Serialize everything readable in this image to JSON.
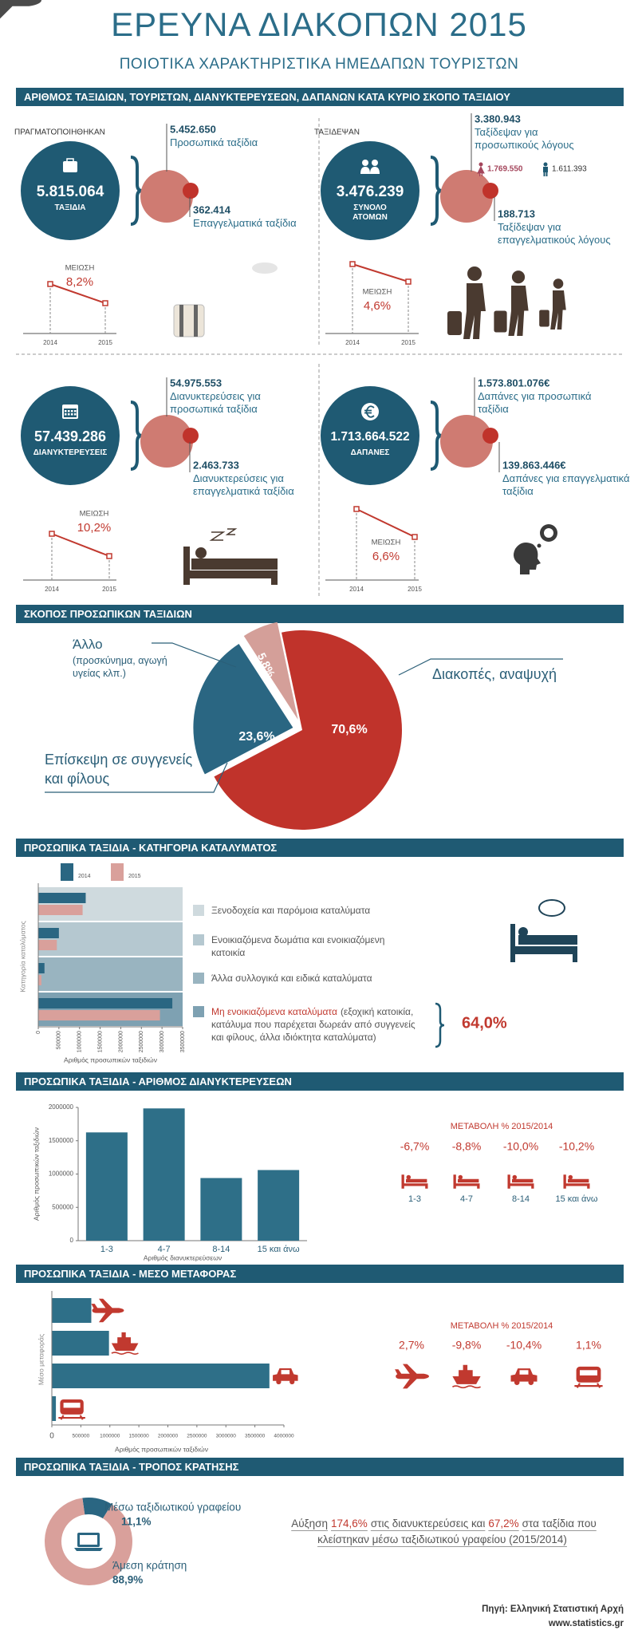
{
  "header": {
    "title": "ΕΡΕΥΝΑ ΔΙΑΚΟΠΩΝ 2015",
    "subtitle": "ΠΟΙΟΤΙΚΑ ΧΑΡΑΚΤΗΡΙΣΤΙΚΑ ΗΜΕΔΑΠΩΝ ΤΟΥΡΙΣΤΩΝ"
  },
  "summary": {
    "title": "ΑΡΙΘΜΟΣ ΤΑΞΙΔΙΩΝ, ΤΟΥΡΙΣΤΩΝ, ΔΙΑΝΥΚΤΕΡΕΥΣΕΩΝ, ΔΑΠΑΝΩΝ ΚΑΤΑ ΚΥΡΙΟ ΣΚΟΠΟ ΤΑΞΙΔΙΟΥ",
    "change_title": "ΜΕΙΩΣΗ",
    "years": [
      "2014",
      "2015"
    ],
    "blocks": [
      {
        "heading": "ΠΡΑΓΜΑΤΟΠΟΙΗΘΗΚΑΝ",
        "total": "5.815.064",
        "total_label": "ΤΑΞΙΔΙΑ",
        "personal": "5.452.650",
        "personal_label": "Προσωπικά ταξίδια",
        "business": "362.414",
        "business_label": "Επαγγελματικά ταξίδια",
        "change": "8,2%"
      },
      {
        "heading": "ΤΑΞΙΔΕΨΑΝ",
        "total": "3.476.239",
        "total_label": "ΣΥΝΟΛΟ ΑΤΟΜΩΝ",
        "personal": "3.380.943",
        "personal_label": "Ταξίδεψαν για προσωπικούς λόγους",
        "women": "1.769.550",
        "men": "1.611.393",
        "business": "188.713",
        "business_label": "Ταξίδεψαν για επαγγελματικούς λόγους",
        "change": "4,6%"
      },
      {
        "total": "57.439.286",
        "total_label": "ΔΙΑΝΥΚΤΕΡΕΥΣΕΙΣ",
        "personal": "54.975.553",
        "personal_label": "Διανυκτερεύσεις για προσωπικά ταξίδια",
        "business": "2.463.733",
        "business_label": "Διανυκτερεύσεις για επαγγελματικά ταξίδια",
        "change": "10,2%"
      },
      {
        "total": "1.713.664.522",
        "total_label": "ΔΑΠΑΝΕΣ",
        "personal": "1.573.801.076€",
        "personal_label": "Δαπάνες για προσωπικά ταξίδια",
        "business": "139.863.446€",
        "business_label": "Δαπάνες για επαγγελματικά ταξίδια",
        "change": "6,6%"
      }
    ]
  },
  "chart_data": [
    {
      "type": "pie",
      "title": "ΣΚΟΠΟΣ ΠΡΟΣΩΠΙΚΩΝ ΤΑΞΙΔΙΩΝ",
      "categories": [
        "Διακοπές, αναψυχή",
        "Επίσκεψη σε συγγενείς και φίλους",
        "Άλλο"
      ],
      "category_details": [
        null,
        null,
        "(προσκύνημα, αγωγή υγείας κλπ.)"
      ],
      "values": [
        70.6,
        23.6,
        5.8
      ],
      "value_labels": [
        "70,6%",
        "23,6%",
        "5,8%"
      ],
      "colors": [
        "#c0332b",
        "#2a6682",
        "#d49f99"
      ]
    },
    {
      "type": "bar",
      "horizontal": true,
      "title": "ΠΡΟΣΩΠΙΚΑ ΤΑΞΙΔΙΑ - ΚΑΤΗΓΟΡΙΑ ΚΑΤΑΛΥΜΑΤΟΣ",
      "categories": [
        "Ξενοδοχεία και παρόμοια καταλύματα",
        "Ενοικιαζόμενα δωμάτια και ενοικιαζόμενη κατοικία",
        "Άλλα συλλογικά και ειδικά καταλύματα",
        "Μη ενοικιαζόμενα καταλύματα"
      ],
      "category_details": [
        null,
        null,
        null,
        "(εξοχική κατοικία, κατάλυμα που παρέχεται δωρεάν από συγγενείς και φίλους, άλλα ιδιόκτητα καταλύματα)"
      ],
      "category_colors": [
        "#cfdade",
        "#b5c8d0",
        "#99b4c0",
        "#7ea1b2"
      ],
      "series": [
        {
          "name": "2014",
          "color": "#2a6682",
          "values": [
            1150000,
            500000,
            150000,
            3250000
          ]
        },
        {
          "name": "2015",
          "color": "#d9a09b",
          "values": [
            1075000,
            450000,
            75000,
            2950000
          ]
        }
      ],
      "xlim": [
        0,
        3500000
      ],
      "xticks": [
        0,
        500000,
        1000000,
        1500000,
        2000000,
        2500000,
        3000000,
        3500000
      ],
      "xlabel": "Αριθμός προσωπικών ταξιδιών",
      "ylabel": "Κατηγορία καταλύματος",
      "annotation": "64,0%"
    },
    {
      "type": "bar",
      "title": "ΠΡΟΣΩΠΙΚΑ ΤΑΞΙΔΙΑ - ΑΡΙΘΜΟΣ ΔΙΑΝΥΚΤΕΡΕΥΣΕΩΝ",
      "categories": [
        "1-3",
        "4-7",
        "8-14",
        "15 και άνω"
      ],
      "values": [
        1625000,
        1985000,
        940000,
        1060000
      ],
      "color": "#2e6f88",
      "ylim": [
        0,
        2000000
      ],
      "yticks": [
        0,
        500000,
        1000000,
        1500000,
        2000000
      ],
      "xlabel": "Αριθμός διανυκτερεύσεων",
      "ylabel": "Αριθμός προσωπικών ταξιδιών",
      "change_title": "ΜΕΤΑΒΟΛΗ % 2015/2014",
      "changes": [
        -6.7,
        -8.8,
        -10.0,
        -10.2
      ],
      "change_labels": [
        "-6,7%",
        "-8,8%",
        "-10,0%",
        "-10,2%"
      ]
    },
    {
      "type": "bar",
      "horizontal": true,
      "title": "ΠΡΟΣΩΠΙΚΑ ΤΑΞΙΔΙΑ - ΜΕΣΟ ΜΕΤΑΦΟΡΑΣ",
      "categories": [
        null,
        null,
        null,
        null
      ],
      "values": [
        680000,
        985000,
        3750000,
        70000
      ],
      "color": "#2e6f88",
      "xlim": [
        0,
        4000000
      ],
      "xticks": [
        0,
        500000,
        1000000,
        1500000,
        2000000,
        2500000,
        3000000,
        3500000,
        4000000
      ],
      "xlabel": "Αριθμός προσωπικών ταξιδιών",
      "ylabel": "Μέσο μεταφοράς",
      "change_title": "ΜΕΤΑΒΟΛΗ % 2015/2014",
      "changes": [
        2.7,
        -9.8,
        -10.4,
        1.1
      ],
      "change_labels": [
        "2,7%",
        "-9,8%",
        "-10,4%",
        "1,1%"
      ]
    },
    {
      "type": "donut",
      "title": "ΠΡΟΣΩΠΙΚΑ ΤΑΞΙΔΙΑ - ΤΡΟΠΟΣ ΚΡΑΤΗΣΗΣ",
      "categories": [
        "Μέσω ταξιδιωτικού γραφείου",
        "Άμεση κράτηση"
      ],
      "values": [
        11.1,
        88.9
      ],
      "value_labels": [
        "11,1%",
        "88,9%"
      ],
      "colors": [
        "#2a6682",
        "#d9a09b"
      ],
      "note": [
        "Αύξηση",
        "174,6%",
        "στις διανυκτερεύσεις και",
        "67,2%",
        "στα ταξίδια που κλείστηκαν μέσω ταξιδιωτικού γραφείου (2015/2014)"
      ]
    }
  ],
  "footer": {
    "source": "Πηγή: Ελληνική Στατιστική Αρχή",
    "url": "www.statistics.gr"
  }
}
